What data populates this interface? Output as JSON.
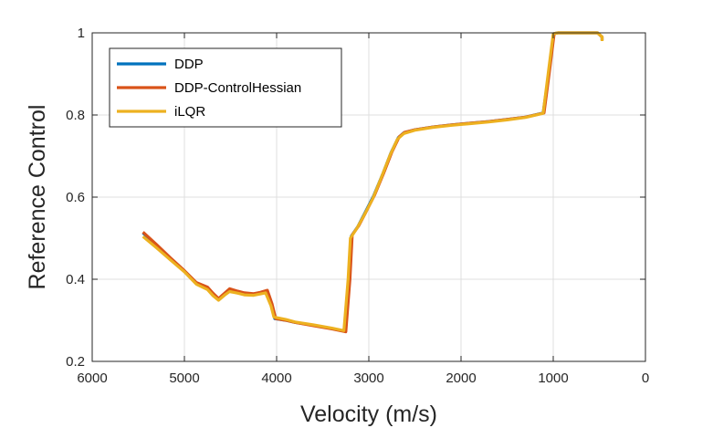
{
  "chart_data": {
    "type": "line",
    "title": "",
    "xlabel": "Velocity (m/s)",
    "ylabel": "Reference Control",
    "xlim": [
      6000,
      0
    ],
    "ylim": [
      0.2,
      1.0
    ],
    "x_reversed": true,
    "grid": true,
    "legend_position": "top-left",
    "x_ticks": [
      6000,
      5000,
      4000,
      3000,
      2000,
      1000,
      0
    ],
    "x_tick_labels": [
      "6000",
      "5000",
      "4000",
      "3000",
      "2000",
      "1000",
      "0"
    ],
    "y_ticks": [
      0.2,
      0.4,
      0.6,
      0.8,
      1.0
    ],
    "y_tick_labels": [
      "0.2",
      "0.4",
      "0.6",
      "0.8",
      "1"
    ],
    "series": [
      {
        "name": "DDP",
        "color": "#0072BD",
        "points": [
          [
            5450,
            0.513
          ],
          [
            5300,
            0.482
          ],
          [
            5150,
            0.451
          ],
          [
            5000,
            0.42
          ],
          [
            4870,
            0.391
          ],
          [
            4750,
            0.38
          ],
          [
            4690,
            0.365
          ],
          [
            4630,
            0.352
          ],
          [
            4560,
            0.366
          ],
          [
            4510,
            0.376
          ],
          [
            4420,
            0.37
          ],
          [
            4350,
            0.366
          ],
          [
            4250,
            0.364
          ],
          [
            4180,
            0.367
          ],
          [
            4110,
            0.372
          ],
          [
            4060,
            0.34
          ],
          [
            4020,
            0.304
          ],
          [
            3900,
            0.3
          ],
          [
            3800,
            0.295
          ],
          [
            3600,
            0.288
          ],
          [
            3400,
            0.28
          ],
          [
            3260,
            0.273
          ],
          [
            3215,
            0.4
          ],
          [
            3190,
            0.505
          ],
          [
            3120,
            0.528
          ],
          [
            3050,
            0.558
          ],
          [
            2950,
            0.602
          ],
          [
            2850,
            0.656
          ],
          [
            2760,
            0.708
          ],
          [
            2680,
            0.745
          ],
          [
            2620,
            0.757
          ],
          [
            2500,
            0.764
          ],
          [
            2300,
            0.771
          ],
          [
            2100,
            0.776
          ],
          [
            1900,
            0.78
          ],
          [
            1700,
            0.784
          ],
          [
            1500,
            0.789
          ],
          [
            1300,
            0.795
          ],
          [
            1110,
            0.805
          ],
          [
            1050,
            0.9
          ],
          [
            995,
            0.998
          ],
          [
            950,
            1.0
          ],
          [
            700,
            1.0
          ],
          [
            520,
            1.0
          ],
          [
            470,
            0.99
          ],
          [
            470,
            0.982
          ]
        ]
      },
      {
        "name": "DDP-ControlHessian",
        "color": "#D95319",
        "points": [
          [
            5450,
            0.515
          ],
          [
            5300,
            0.484
          ],
          [
            5150,
            0.452
          ],
          [
            5000,
            0.421
          ],
          [
            4870,
            0.392
          ],
          [
            4750,
            0.381
          ],
          [
            4690,
            0.366
          ],
          [
            4630,
            0.353
          ],
          [
            4560,
            0.367
          ],
          [
            4510,
            0.377
          ],
          [
            4420,
            0.371
          ],
          [
            4350,
            0.367
          ],
          [
            4250,
            0.365
          ],
          [
            4180,
            0.368
          ],
          [
            4100,
            0.373
          ],
          [
            4050,
            0.34
          ],
          [
            4010,
            0.304
          ],
          [
            3900,
            0.3
          ],
          [
            3800,
            0.295
          ],
          [
            3600,
            0.287
          ],
          [
            3400,
            0.279
          ],
          [
            3250,
            0.272
          ],
          [
            3205,
            0.4
          ],
          [
            3180,
            0.508
          ],
          [
            3110,
            0.53
          ],
          [
            3040,
            0.56
          ],
          [
            2940,
            0.604
          ],
          [
            2840,
            0.658
          ],
          [
            2750,
            0.71
          ],
          [
            2670,
            0.747
          ],
          [
            2610,
            0.758
          ],
          [
            2500,
            0.764
          ],
          [
            2300,
            0.771
          ],
          [
            2100,
            0.776
          ],
          [
            1900,
            0.78
          ],
          [
            1700,
            0.784
          ],
          [
            1500,
            0.789
          ],
          [
            1300,
            0.795
          ],
          [
            1100,
            0.805
          ],
          [
            1045,
            0.9
          ],
          [
            990,
            0.998
          ],
          [
            950,
            1.0
          ],
          [
            700,
            1.0
          ],
          [
            520,
            1.0
          ],
          [
            470,
            0.99
          ],
          [
            470,
            0.982
          ]
        ]
      },
      {
        "name": "iLQR",
        "color": "#EDB120",
        "points": [
          [
            5450,
            0.504
          ],
          [
            5300,
            0.476
          ],
          [
            5150,
            0.447
          ],
          [
            5000,
            0.418
          ],
          [
            4870,
            0.388
          ],
          [
            4750,
            0.375
          ],
          [
            4690,
            0.36
          ],
          [
            4630,
            0.349
          ],
          [
            4560,
            0.362
          ],
          [
            4510,
            0.37
          ],
          [
            4420,
            0.366
          ],
          [
            4350,
            0.362
          ],
          [
            4250,
            0.361
          ],
          [
            4180,
            0.364
          ],
          [
            4120,
            0.367
          ],
          [
            4060,
            0.335
          ],
          [
            4030,
            0.308
          ],
          [
            3900,
            0.302
          ],
          [
            3800,
            0.296
          ],
          [
            3600,
            0.289
          ],
          [
            3400,
            0.281
          ],
          [
            3270,
            0.275
          ],
          [
            3225,
            0.4
          ],
          [
            3200,
            0.5
          ],
          [
            3130,
            0.524
          ],
          [
            3060,
            0.552
          ],
          [
            2960,
            0.595
          ],
          [
            2860,
            0.65
          ],
          [
            2770,
            0.702
          ],
          [
            2690,
            0.741
          ],
          [
            2620,
            0.755
          ],
          [
            2500,
            0.763
          ],
          [
            2300,
            0.77
          ],
          [
            2100,
            0.775
          ],
          [
            1900,
            0.779
          ],
          [
            1700,
            0.783
          ],
          [
            1500,
            0.788
          ],
          [
            1300,
            0.794
          ],
          [
            1110,
            0.804
          ],
          [
            1055,
            0.9
          ],
          [
            1000,
            0.998
          ],
          [
            950,
            1.0
          ],
          [
            700,
            1.0
          ],
          [
            520,
            1.0
          ],
          [
            470,
            0.99
          ],
          [
            470,
            0.98
          ]
        ]
      }
    ]
  }
}
